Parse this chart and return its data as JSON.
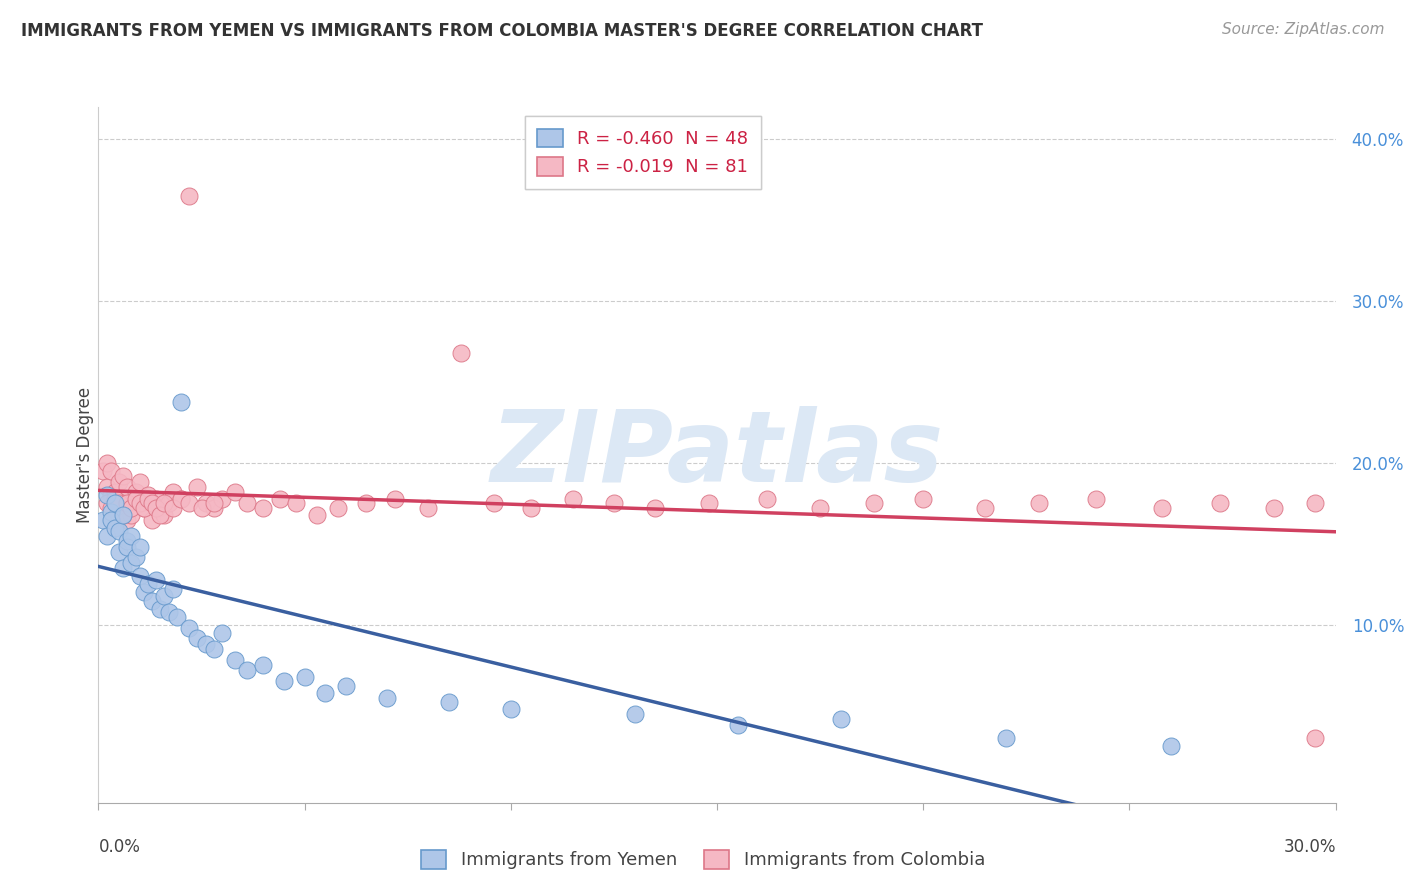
{
  "title": "IMMIGRANTS FROM YEMEN VS IMMIGRANTS FROM COLOMBIA MASTER'S DEGREE CORRELATION CHART",
  "source": "Source: ZipAtlas.com",
  "ylabel": "Master's Degree",
  "legend_label1": "Immigrants from Yemen",
  "legend_label2": "Immigrants from Colombia",
  "r1": "-0.460",
  "n1": "48",
  "r2": "-0.019",
  "n2": "81",
  "color_yemen_fill": "#aec6e8",
  "color_yemen_edge": "#6699cc",
  "color_colombia_fill": "#f5b8c4",
  "color_colombia_edge": "#dd7788",
  "color_trend_yemen": "#3a5fa0",
  "color_trend_colombia": "#d04060",
  "watermark_color": "#dce8f5",
  "xlim": [
    0.0,
    0.3
  ],
  "ylim": [
    -0.01,
    0.42
  ],
  "yticks": [
    0.1,
    0.2,
    0.3,
    0.4
  ],
  "ytick_labels": [
    "10.0%",
    "20.0%",
    "30.0%",
    "40.0%"
  ],
  "background": "#ffffff",
  "yemen_x": [
    0.001,
    0.002,
    0.002,
    0.003,
    0.003,
    0.004,
    0.004,
    0.005,
    0.005,
    0.006,
    0.006,
    0.007,
    0.007,
    0.008,
    0.008,
    0.009,
    0.01,
    0.01,
    0.011,
    0.012,
    0.013,
    0.014,
    0.015,
    0.016,
    0.017,
    0.018,
    0.019,
    0.02,
    0.022,
    0.024,
    0.026,
    0.028,
    0.03,
    0.033,
    0.036,
    0.04,
    0.045,
    0.05,
    0.055,
    0.06,
    0.07,
    0.085,
    0.1,
    0.13,
    0.155,
    0.18,
    0.22,
    0.26
  ],
  "yemen_y": [
    0.165,
    0.18,
    0.155,
    0.17,
    0.165,
    0.16,
    0.175,
    0.158,
    0.145,
    0.168,
    0.135,
    0.152,
    0.148,
    0.155,
    0.138,
    0.142,
    0.13,
    0.148,
    0.12,
    0.125,
    0.115,
    0.128,
    0.11,
    0.118,
    0.108,
    0.122,
    0.105,
    0.238,
    0.098,
    0.092,
    0.088,
    0.085,
    0.095,
    0.078,
    0.072,
    0.075,
    0.065,
    0.068,
    0.058,
    0.062,
    0.055,
    0.052,
    0.048,
    0.045,
    0.038,
    0.042,
    0.03,
    0.025
  ],
  "colombia_x": [
    0.001,
    0.002,
    0.002,
    0.003,
    0.003,
    0.004,
    0.004,
    0.005,
    0.005,
    0.006,
    0.006,
    0.007,
    0.007,
    0.008,
    0.008,
    0.009,
    0.009,
    0.01,
    0.011,
    0.012,
    0.013,
    0.014,
    0.015,
    0.016,
    0.017,
    0.018,
    0.02,
    0.022,
    0.024,
    0.026,
    0.028,
    0.03,
    0.033,
    0.036,
    0.04,
    0.044,
    0.048,
    0.053,
    0.058,
    0.065,
    0.072,
    0.08,
    0.088,
    0.096,
    0.105,
    0.115,
    0.125,
    0.135,
    0.148,
    0.162,
    0.175,
    0.188,
    0.2,
    0.215,
    0.228,
    0.242,
    0.258,
    0.272,
    0.285,
    0.295,
    0.002,
    0.003,
    0.004,
    0.005,
    0.006,
    0.007,
    0.008,
    0.009,
    0.01,
    0.011,
    0.012,
    0.013,
    0.014,
    0.015,
    0.016,
    0.018,
    0.02,
    0.022,
    0.025,
    0.028,
    0.295
  ],
  "colombia_y": [
    0.195,
    0.2,
    0.185,
    0.195,
    0.18,
    0.182,
    0.175,
    0.188,
    0.172,
    0.178,
    0.192,
    0.165,
    0.185,
    0.175,
    0.168,
    0.182,
    0.178,
    0.188,
    0.172,
    0.18,
    0.165,
    0.178,
    0.172,
    0.168,
    0.175,
    0.182,
    0.178,
    0.365,
    0.185,
    0.175,
    0.172,
    0.178,
    0.182,
    0.175,
    0.172,
    0.178,
    0.175,
    0.168,
    0.172,
    0.175,
    0.178,
    0.172,
    0.268,
    0.175,
    0.172,
    0.178,
    0.175,
    0.172,
    0.175,
    0.178,
    0.172,
    0.175,
    0.178,
    0.172,
    0.175,
    0.178,
    0.172,
    0.175,
    0.172,
    0.175,
    0.175,
    0.172,
    0.178,
    0.175,
    0.168,
    0.175,
    0.172,
    0.178,
    0.175,
    0.172,
    0.178,
    0.175,
    0.172,
    0.168,
    0.175,
    0.172,
    0.178,
    0.175,
    0.172,
    0.175,
    0.03
  ]
}
